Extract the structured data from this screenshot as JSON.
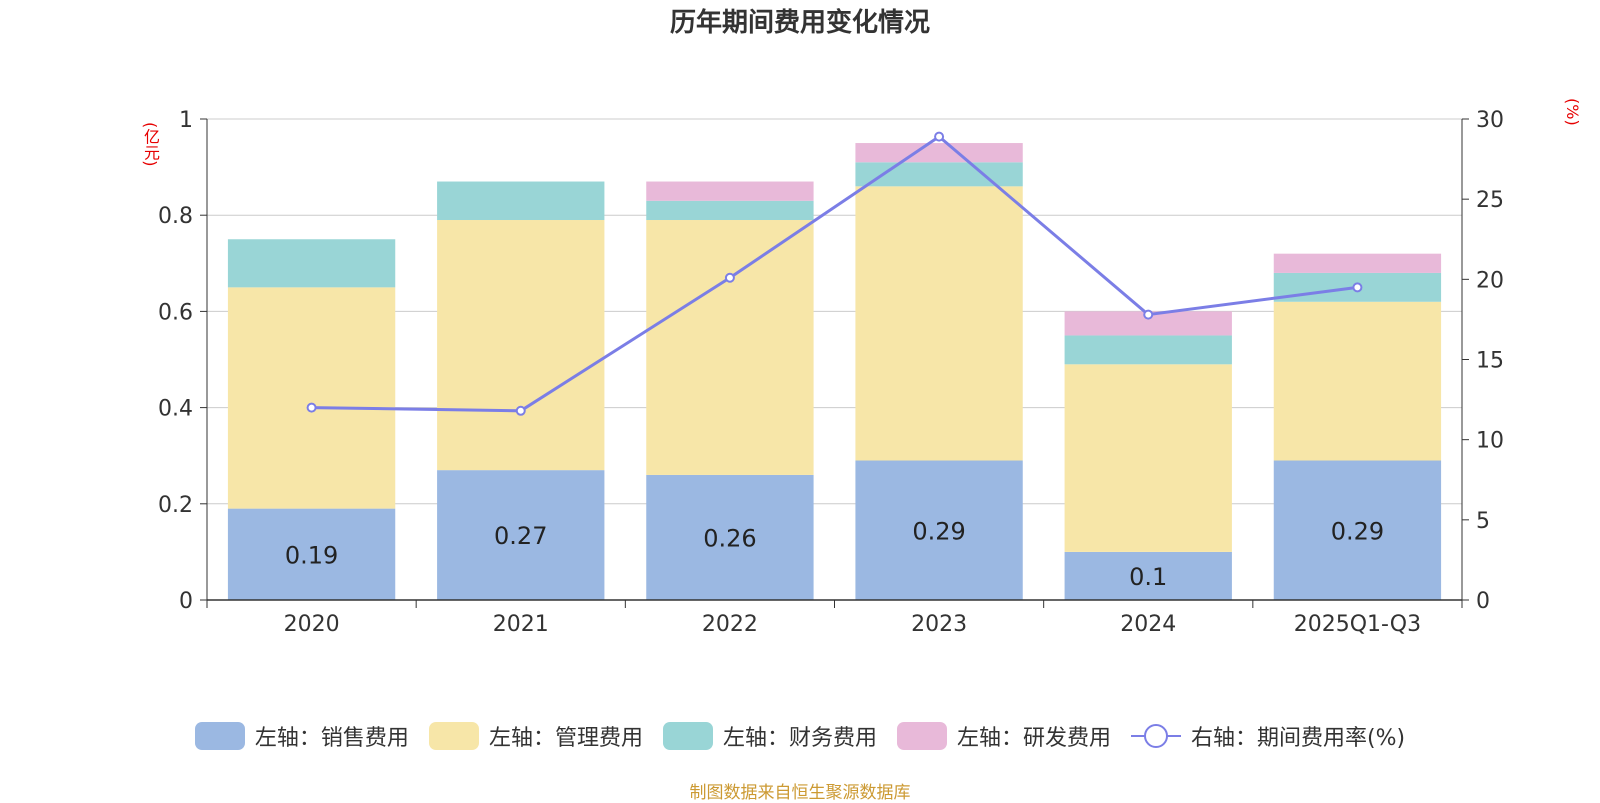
{
  "chart_data": {
    "type": "bar",
    "title": "历年期间费用变化情况",
    "categories": [
      "2020",
      "2021",
      "2022",
      "2023",
      "2024",
      "2025Q1-Q3"
    ],
    "y_left_unit": "(亿元)",
    "y_right_unit": "(%)",
    "y_left_ticks": [
      "0",
      "0.2",
      "0.4",
      "0.6",
      "0.8",
      "1"
    ],
    "y_right_ticks": [
      "0",
      "5",
      "10",
      "15",
      "20",
      "25",
      "30"
    ],
    "ylim_left": [
      0,
      1
    ],
    "ylim_right": [
      0,
      30
    ],
    "series": [
      {
        "name": "左轴：销售费用",
        "type": "bar",
        "stack": true,
        "axis": "left",
        "color": "#9bb8e2",
        "values": [
          0.19,
          0.27,
          0.26,
          0.29,
          0.1,
          0.29
        ],
        "labels": [
          "0.19",
          "0.27",
          "0.26",
          "0.29",
          "0.1",
          "0.29"
        ]
      },
      {
        "name": "左轴：管理费用",
        "type": "bar",
        "stack": true,
        "axis": "left",
        "color": "#f7e6a8",
        "values": [
          0.46,
          0.52,
          0.53,
          0.57,
          0.39,
          0.33
        ]
      },
      {
        "name": "左轴：财务费用",
        "type": "bar",
        "stack": true,
        "axis": "left",
        "color": "#99d5d6",
        "values": [
          0.1,
          0.08,
          0.04,
          0.05,
          0.06,
          0.06
        ]
      },
      {
        "name": "左轴：研发费用",
        "type": "bar",
        "stack": true,
        "axis": "left",
        "color": "#e8b9d9",
        "values": [
          0,
          0,
          0.04,
          0.04,
          0.05,
          0.04
        ]
      },
      {
        "name": "右轴：期间费用率(%)",
        "type": "line",
        "axis": "right",
        "color": "#7b7ee6",
        "values": [
          12.0,
          11.8,
          20.1,
          28.9,
          17.8,
          19.5
        ]
      }
    ],
    "legend_position": "bottom",
    "grid": true
  },
  "source": "制图数据来自恒生聚源数据库"
}
